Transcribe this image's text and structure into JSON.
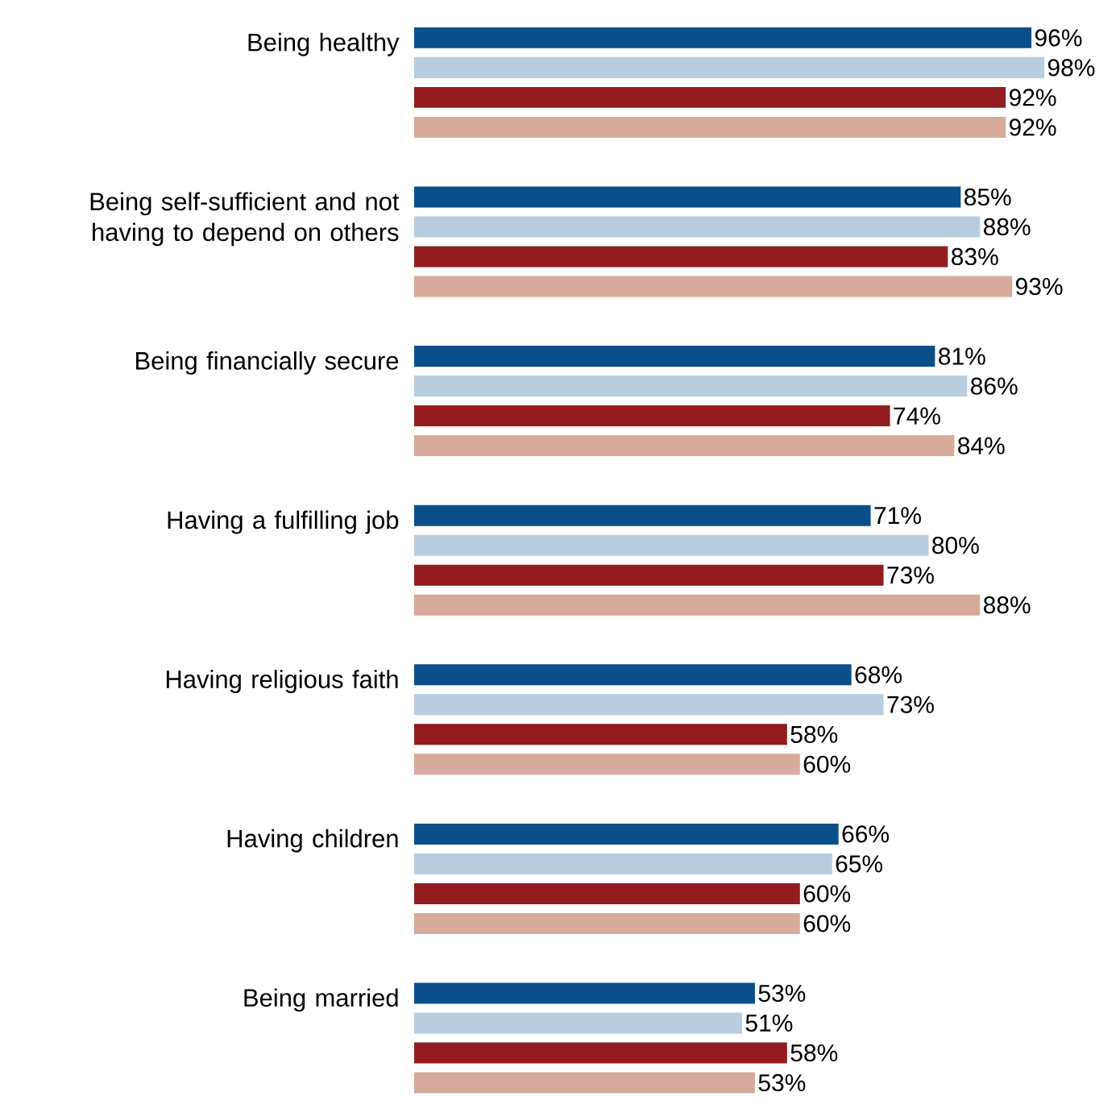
{
  "chart_data": {
    "type": "bar",
    "orientation": "horizontal",
    "categories": [
      "Being healthy",
      "Being self-sufficient and not having to depend on others",
      "Being financially secure",
      "Having a fulfilling job",
      "Having religious faith",
      "Having children",
      "Being married"
    ],
    "series": [
      {
        "color": "#0b4f8a",
        "values": [
          96,
          85,
          81,
          71,
          68,
          66,
          53
        ],
        "value_labels": [
          "96%",
          "85%",
          "81%",
          "71%",
          "68%",
          "66%",
          "53%"
        ]
      },
      {
        "color": "#b8cde0",
        "values": [
          98,
          88,
          86,
          80,
          73,
          65,
          51
        ],
        "value_labels": [
          "98%",
          "88%",
          "86%",
          "80%",
          "73%",
          "65%",
          "51%"
        ]
      },
      {
        "color": "#921c20",
        "values": [
          92,
          83,
          74,
          73,
          58,
          60,
          58
        ],
        "value_labels": [
          "92%",
          "83%",
          "74%",
          "73%",
          "58%",
          "60%",
          "58%"
        ]
      },
      {
        "color": "#d6ab9b",
        "values": [
          92,
          93,
          84,
          88,
          60,
          60,
          53
        ],
        "value_labels": [
          "92%",
          "93%",
          "84%",
          "88%",
          "60%",
          "60%",
          "53%"
        ]
      }
    ]
  }
}
